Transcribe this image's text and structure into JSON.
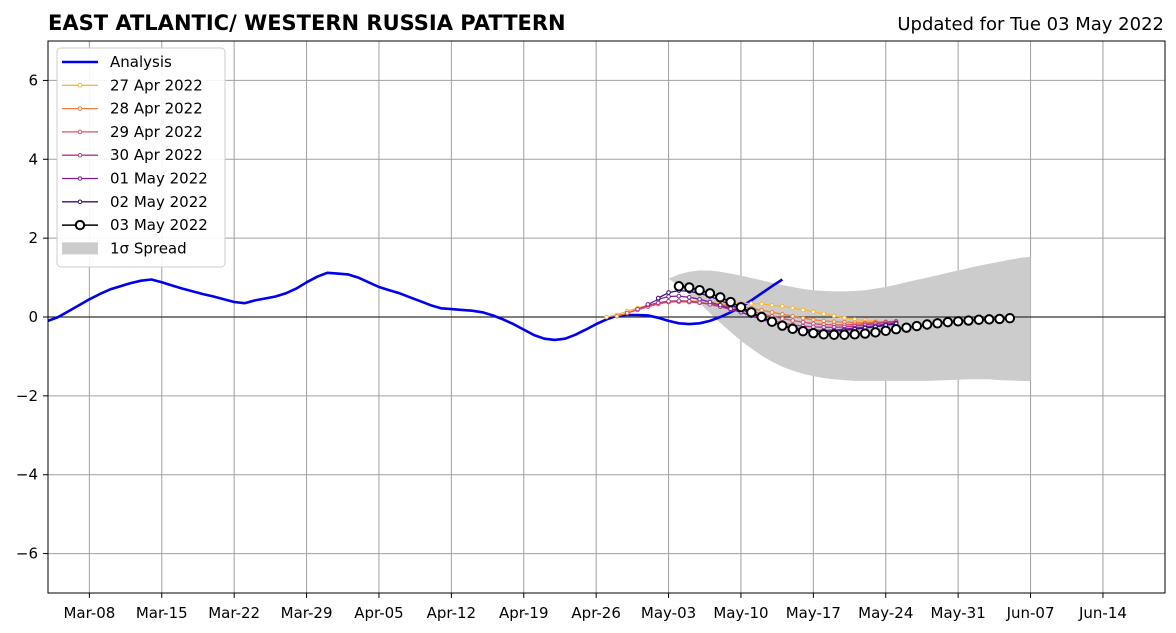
{
  "chart_data": {
    "type": "line",
    "title": "EAST ATLANTIC/ WESTERN RUSSIA PATTERN",
    "subtitle": "Updated for Tue 03 May 2022",
    "x_axis": {
      "type": "date",
      "range": [
        "2022-03-04",
        "2022-06-20"
      ],
      "ticks": [
        {
          "date": "2022-03-08",
          "label": "Mar-08"
        },
        {
          "date": "2022-03-15",
          "label": "Mar-15"
        },
        {
          "date": "2022-03-22",
          "label": "Mar-22"
        },
        {
          "date": "2022-03-29",
          "label": "Mar-29"
        },
        {
          "date": "2022-04-05",
          "label": "Apr-05"
        },
        {
          "date": "2022-04-12",
          "label": "Apr-12"
        },
        {
          "date": "2022-04-19",
          "label": "Apr-19"
        },
        {
          "date": "2022-04-26",
          "label": "Apr-26"
        },
        {
          "date": "2022-05-03",
          "label": "May-03"
        },
        {
          "date": "2022-05-10",
          "label": "May-10"
        },
        {
          "date": "2022-05-17",
          "label": "May-17"
        },
        {
          "date": "2022-05-24",
          "label": "May-24"
        },
        {
          "date": "2022-05-31",
          "label": "May-31"
        },
        {
          "date": "2022-06-07",
          "label": "Jun-07"
        },
        {
          "date": "2022-06-14",
          "label": "Jun-14"
        }
      ]
    },
    "y_axis": {
      "range": [
        -7,
        7
      ],
      "ticks": [
        {
          "value": -6,
          "label": "−6"
        },
        {
          "value": -4,
          "label": "−4"
        },
        {
          "value": -2,
          "label": "−2"
        },
        {
          "value": 0,
          "label": "0"
        },
        {
          "value": 2,
          "label": "2"
        },
        {
          "value": 4,
          "label": "4"
        },
        {
          "value": 6,
          "label": "6"
        }
      ]
    },
    "grid": true,
    "zero_line": true,
    "legend_position": "top-left",
    "analysis": {
      "name": "Analysis",
      "color": "#0000ee",
      "start": "2022-03-04",
      "values": [
        -0.1,
        0.0,
        0.15,
        0.3,
        0.45,
        0.58,
        0.7,
        0.78,
        0.86,
        0.92,
        0.95,
        0.88,
        0.8,
        0.72,
        0.65,
        0.58,
        0.52,
        0.45,
        0.38,
        0.35,
        0.42,
        0.47,
        0.52,
        0.6,
        0.72,
        0.88,
        1.02,
        1.12,
        1.1,
        1.08,
        1.0,
        0.88,
        0.76,
        0.68,
        0.6,
        0.5,
        0.4,
        0.3,
        0.22,
        0.2,
        0.18,
        0.16,
        0.12,
        0.04,
        -0.06,
        -0.18,
        -0.32,
        -0.46,
        -0.55,
        -0.58,
        -0.55,
        -0.45,
        -0.32,
        -0.18,
        -0.06,
        0.03,
        0.05,
        0.05,
        0.04,
        -0.02,
        -0.1,
        -0.16,
        -0.18,
        -0.16,
        -0.1,
        0.0,
        0.12,
        0.25,
        0.42,
        0.6,
        0.78,
        0.95
      ]
    },
    "forecasts": [
      {
        "name": "27 Apr 2022",
        "color": "#f5b83a",
        "start": "2022-04-27",
        "values": [
          0.0,
          0.05,
          0.15,
          0.22,
          0.3,
          0.35,
          0.38,
          0.4,
          0.41,
          0.4,
          0.39,
          0.38,
          0.36,
          0.35,
          0.34,
          0.33,
          0.3,
          0.27,
          0.23,
          0.18,
          0.13,
          0.08,
          0.03,
          -0.02,
          -0.06,
          -0.09,
          -0.11,
          -0.12,
          -0.12
        ]
      },
      {
        "name": "28 Apr 2022",
        "color": "#ef7f3a",
        "start": "2022-04-28",
        "values": [
          0.02,
          0.1,
          0.2,
          0.28,
          0.34,
          0.38,
          0.39,
          0.38,
          0.36,
          0.34,
          0.32,
          0.29,
          0.26,
          0.22,
          0.17,
          0.12,
          0.07,
          0.02,
          -0.03,
          -0.07,
          -0.1,
          -0.12,
          -0.13,
          -0.14,
          -0.14,
          -0.13,
          -0.12,
          -0.11
        ]
      },
      {
        "name": "29 Apr 2022",
        "color": "#db5066",
        "start": "2022-04-29",
        "values": [
          0.1,
          0.18,
          0.26,
          0.33,
          0.38,
          0.39,
          0.38,
          0.36,
          0.33,
          0.29,
          0.25,
          0.2,
          0.14,
          0.08,
          0.02,
          -0.04,
          -0.09,
          -0.13,
          -0.17,
          -0.19,
          -0.2,
          -0.2,
          -0.19,
          -0.17,
          -0.15,
          -0.13,
          -0.11
        ]
      },
      {
        "name": "30 Apr 2022",
        "color": "#b2378a",
        "start": "2022-04-30",
        "values": [
          0.2,
          0.3,
          0.36,
          0.4,
          0.41,
          0.4,
          0.37,
          0.32,
          0.26,
          0.19,
          0.12,
          0.05,
          -0.02,
          -0.09,
          -0.15,
          -0.2,
          -0.23,
          -0.25,
          -0.26,
          -0.26,
          -0.25,
          -0.23,
          -0.2,
          -0.17,
          -0.14,
          -0.12
        ]
      },
      {
        "name": "01 May 2022",
        "color": "#7a1f9c",
        "start": "2022-05-01",
        "values": [
          0.32,
          0.45,
          0.52,
          0.53,
          0.5,
          0.45,
          0.38,
          0.3,
          0.21,
          0.12,
          0.03,
          -0.06,
          -0.14,
          -0.21,
          -0.27,
          -0.31,
          -0.33,
          -0.34,
          -0.33,
          -0.31,
          -0.28,
          -0.25,
          -0.22,
          -0.18,
          -0.15
        ]
      },
      {
        "name": "02 May 2022",
        "color": "#3a0c7a",
        "start": "2022-05-02",
        "values": [
          0.48,
          0.62,
          0.67,
          0.65,
          0.6,
          0.52,
          0.42,
          0.31,
          0.2,
          0.09,
          -0.02,
          -0.12,
          -0.21,
          -0.28,
          -0.33,
          -0.36,
          -0.37,
          -0.36,
          -0.34,
          -0.31,
          -0.28,
          -0.25,
          -0.21,
          -0.17
        ]
      }
    ],
    "current_forecast": {
      "name": "03 May 2022",
      "color": "#000000",
      "start": "2022-05-04",
      "values": [
        0.78,
        0.75,
        0.68,
        0.6,
        0.5,
        0.38,
        0.25,
        0.12,
        0.0,
        -0.12,
        -0.22,
        -0.3,
        -0.36,
        -0.41,
        -0.44,
        -0.45,
        -0.45,
        -0.44,
        -0.42,
        -0.39,
        -0.35,
        -0.31,
        -0.27,
        -0.23,
        -0.19,
        -0.16,
        -0.13,
        -0.11,
        -0.09,
        -0.07,
        -0.06,
        -0.05,
        -0.03
      ]
    },
    "spread": {
      "name": "1σ Spread",
      "color": "#cccccc",
      "start": "2022-05-03",
      "upper": [
        0.97,
        1.08,
        1.15,
        1.18,
        1.18,
        1.15,
        1.1,
        1.05,
        0.99,
        0.93,
        0.87,
        0.81,
        0.76,
        0.71,
        0.68,
        0.66,
        0.65,
        0.65,
        0.66,
        0.68,
        0.72,
        0.76,
        0.82,
        0.88,
        0.94,
        1.0,
        1.06,
        1.12,
        1.18,
        1.24,
        1.3,
        1.35,
        1.4,
        1.45,
        1.5,
        1.53
      ],
      "lower": [
        0.97,
        0.8,
        0.58,
        0.35,
        0.1,
        -0.15,
        -0.38,
        -0.6,
        -0.8,
        -0.98,
        -1.13,
        -1.26,
        -1.36,
        -1.44,
        -1.5,
        -1.55,
        -1.58,
        -1.6,
        -1.62,
        -1.62,
        -1.62,
        -1.62,
        -1.62,
        -1.62,
        -1.62,
        -1.62,
        -1.61,
        -1.6,
        -1.59,
        -1.58,
        -1.58,
        -1.58,
        -1.6,
        -1.61,
        -1.62,
        -1.63
      ]
    }
  }
}
